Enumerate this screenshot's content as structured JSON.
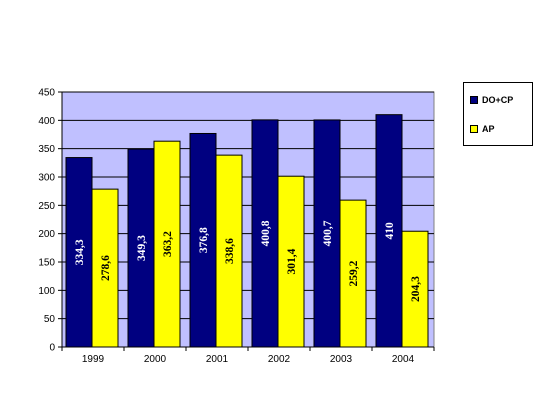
{
  "chart_data": {
    "type": "bar",
    "categories": [
      "1999",
      "2000",
      "2001",
      "2002",
      "2003",
      "2004"
    ],
    "series": [
      {
        "name": "DO+CP",
        "color": "#000080",
        "values": [
          334.3,
          349.3,
          376.8,
          400.8,
          400.7,
          410
        ],
        "labels": [
          "334,3",
          "349,3",
          "376,8",
          "400,8",
          "400,7",
          "410"
        ],
        "label_color": "#ffffff"
      },
      {
        "name": "AP",
        "color": "#ffff00",
        "values": [
          278.6,
          363.2,
          338.6,
          301.4,
          259.2,
          204.3
        ],
        "labels": [
          "278,6",
          "363,2",
          "338,6",
          "301,4",
          "259,2",
          "204,3"
        ],
        "label_color": "#000000"
      }
    ],
    "ylim": [
      0,
      450
    ],
    "yticks": [
      "0",
      "50",
      "100",
      "150",
      "200",
      "250",
      "300",
      "350",
      "400",
      "450"
    ],
    "grid": true,
    "plot_background": "#c0c0ff",
    "legend_position": "right",
    "title": "",
    "xlabel": "",
    "ylabel": ""
  }
}
